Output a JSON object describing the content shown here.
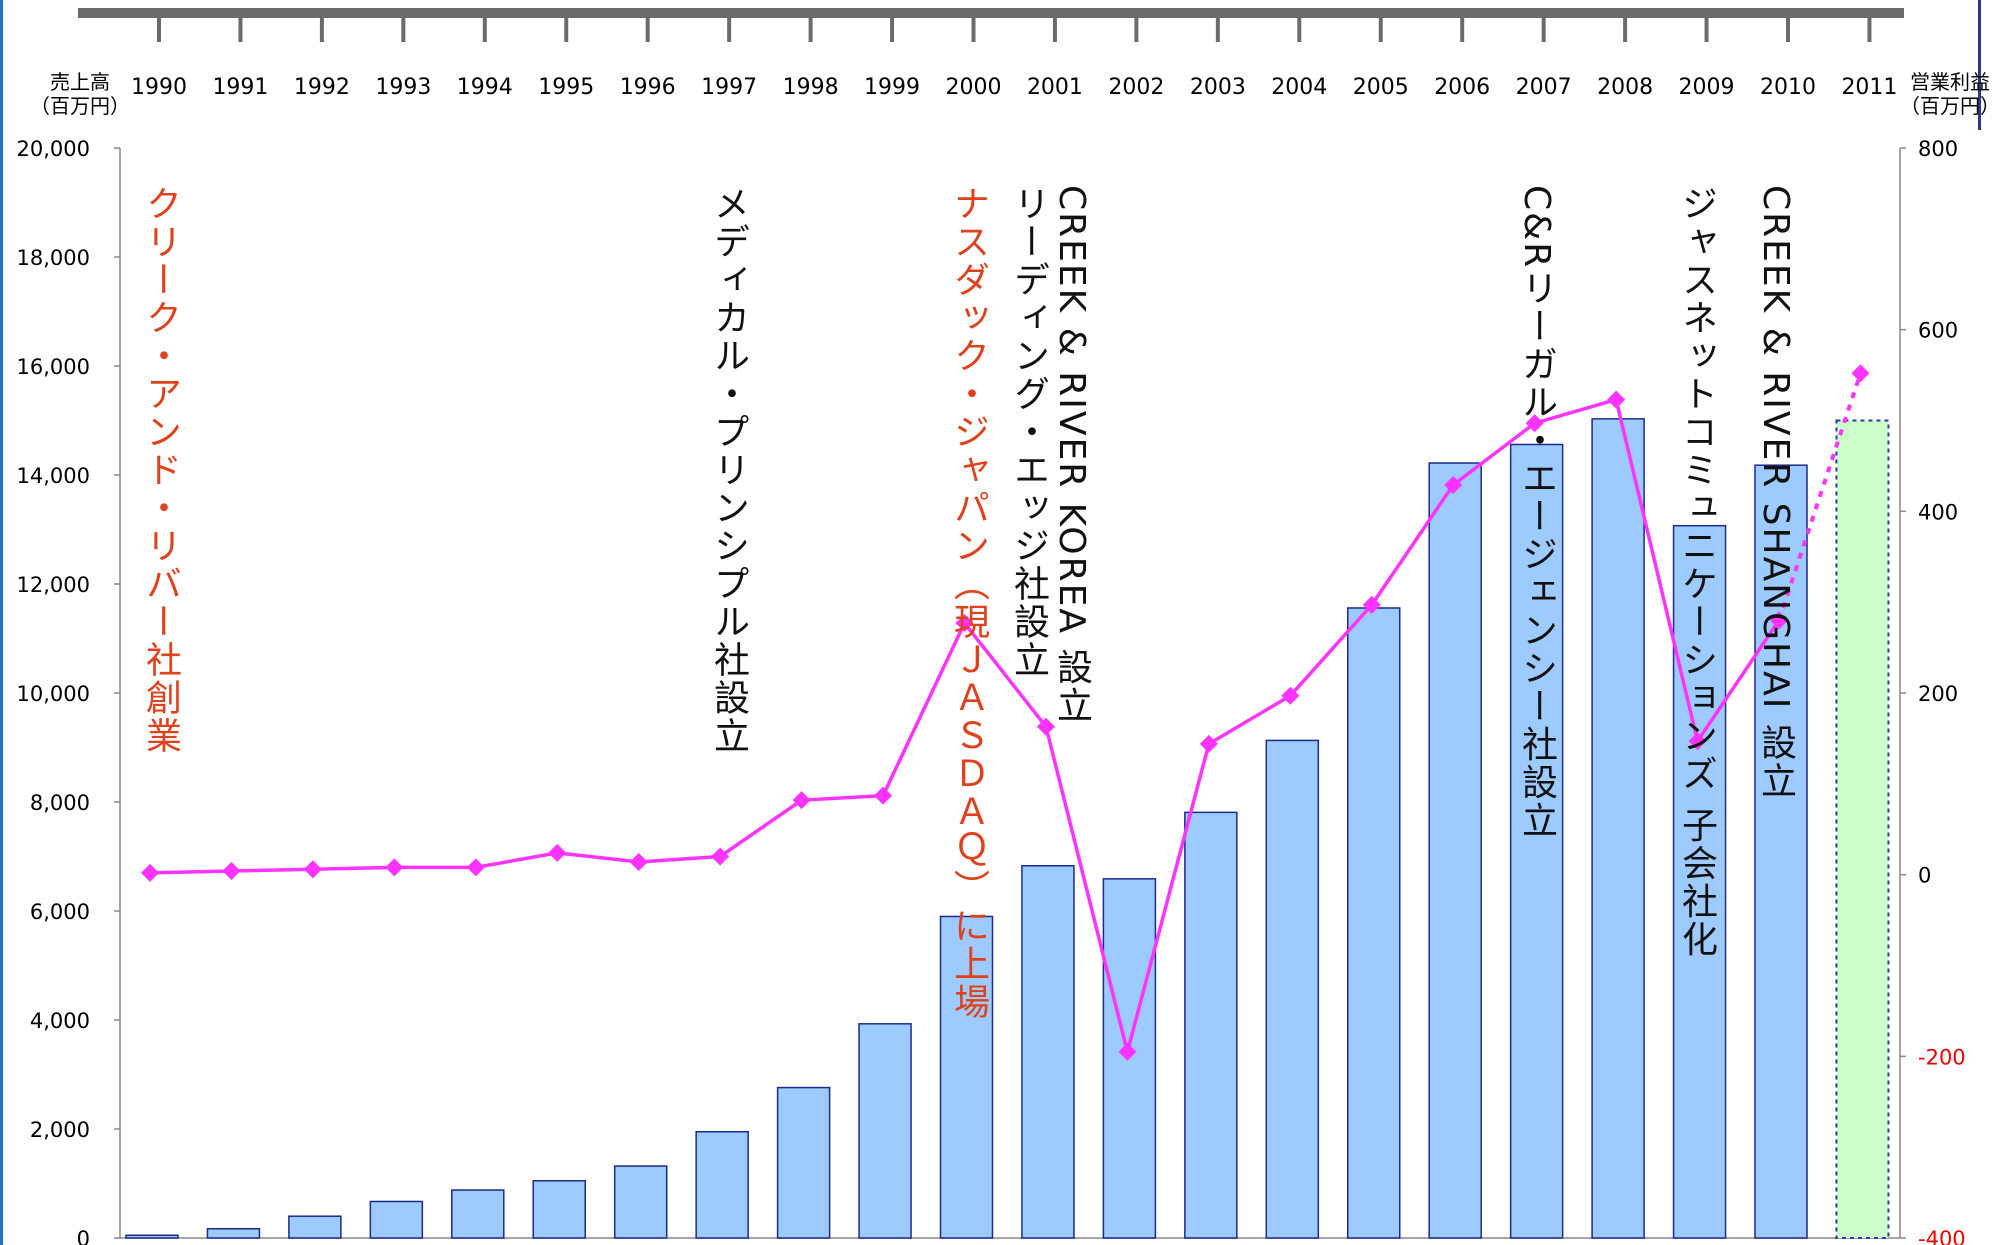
{
  "chart_data": {
    "type": "bar",
    "categories": [
      "1990",
      "1991",
      "1992",
      "1993",
      "1994",
      "1995",
      "1996",
      "1997",
      "1998",
      "1999",
      "2000",
      "2001",
      "2002",
      "2003",
      "2004",
      "2005",
      "2006",
      "2007",
      "2008",
      "2009",
      "2010",
      "2011"
    ],
    "left_axis": {
      "label_line1": "売上高",
      "label_line2": "（百万円）",
      "ylim": [
        0,
        20000
      ],
      "ticks": [
        "0",
        "2,000",
        "4,000",
        "6,000",
        "8,000",
        "10,000",
        "12,000",
        "14,000",
        "16,000",
        "18,000",
        "20,000"
      ]
    },
    "right_axis": {
      "label_line1": "営業利益",
      "label_line2": "（百万円）",
      "ylim": [
        -400,
        800
      ],
      "ticks": [
        "-400",
        "-200",
        "0",
        "200",
        "400",
        "600",
        "800"
      ]
    },
    "series": [
      {
        "kind": "bar",
        "values": [
          50,
          170,
          400,
          670,
          880,
          1050,
          1320,
          1950,
          2760,
          3930,
          5900,
          6830,
          6590,
          7810,
          9130,
          11560,
          14220,
          14560,
          15030,
          13070,
          14180,
          15000
        ],
        "forecast_index": 21
      },
      {
        "kind": "line",
        "values": [
          2,
          4,
          6,
          8,
          8,
          24,
          14,
          20,
          82,
          87,
          277,
          163,
          -195,
          144,
          197,
          297,
          429,
          497,
          523,
          147,
          280,
          552
        ],
        "forecast_index": 21
      }
    ],
    "annotations": [
      {
        "year": "1990",
        "text": "クリーク・アンド・リバー社創業",
        "color": "red"
      },
      {
        "year": "1997",
        "text": "メディカル・プリンシプル社設立",
        "color": "black"
      },
      {
        "year": "2000",
        "text": "ナスダック・ジャパン（現ＪＡＳＤＡＱ）に上場",
        "color": "red"
      },
      {
        "year": "2000",
        "text": "リーディング・エッジ社設立",
        "color": "black"
      },
      {
        "year": "2001",
        "text": "CREEK & RIVER KOREA 設立",
        "color": "black"
      },
      {
        "year": "2007",
        "text": "C&Rリーガル・エージェンシー社設立",
        "color": "black"
      },
      {
        "year": "2009",
        "text": "ジャスネットコミュニケーションズ 子会社化",
        "color": "black"
      },
      {
        "year": "2010",
        "text": "CREEK & RIVER SHANGHAI 設立",
        "color": "black"
      }
    ],
    "colors": {
      "bar_fill": "#9ecbff",
      "bar_stroke": "#1c2a8c",
      "forecast_fill": "#ccffcc",
      "forecast_stroke": "#2a3aa0",
      "line": "#ff33ff",
      "timeline": "#6b6b6b",
      "red_text": "#e0401a",
      "negative_tick": "#ee0000"
    },
    "grid": false,
    "legend": "none"
  }
}
